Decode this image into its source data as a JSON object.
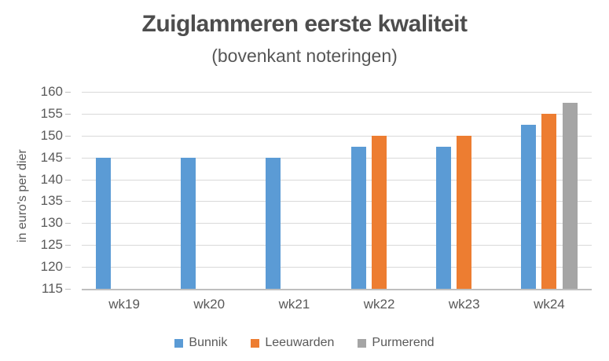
{
  "title": "Zuiglammeren eerste kwaliteit",
  "subtitle": "(bovenkant noteringen)",
  "chart_data": {
    "type": "bar",
    "categories": [
      "wk19",
      "wk20",
      "wk21",
      "wk22",
      "wk23",
      "wk24"
    ],
    "series": [
      {
        "name": "Bunnik",
        "color": "#5B9BD5",
        "values": [
          145,
          145,
          145,
          147.5,
          147.5,
          152.5
        ]
      },
      {
        "name": "Leeuwarden",
        "color": "#ED7D31",
        "values": [
          null,
          null,
          null,
          150,
          150,
          155
        ]
      },
      {
        "name": "Purmerend",
        "color": "#A5A5A5",
        "values": [
          null,
          null,
          null,
          null,
          null,
          157.5
        ]
      }
    ],
    "title": "Zuiglammeren eerste kwaliteit",
    "subtitle": "(bovenkant noteringen)",
    "xlabel": "",
    "ylabel": "in euro's per dier",
    "ylim": [
      115,
      160
    ],
    "yticks": [
      115,
      120,
      125,
      130,
      135,
      140,
      145,
      150,
      155,
      160
    ],
    "grid": true,
    "legend_position": "bottom"
  },
  "colors": {
    "grid_line": "#d9d9d9",
    "axis_line": "#bfbfbf",
    "text_gray": "#595959",
    "title_gray": "#4d4d4d"
  }
}
